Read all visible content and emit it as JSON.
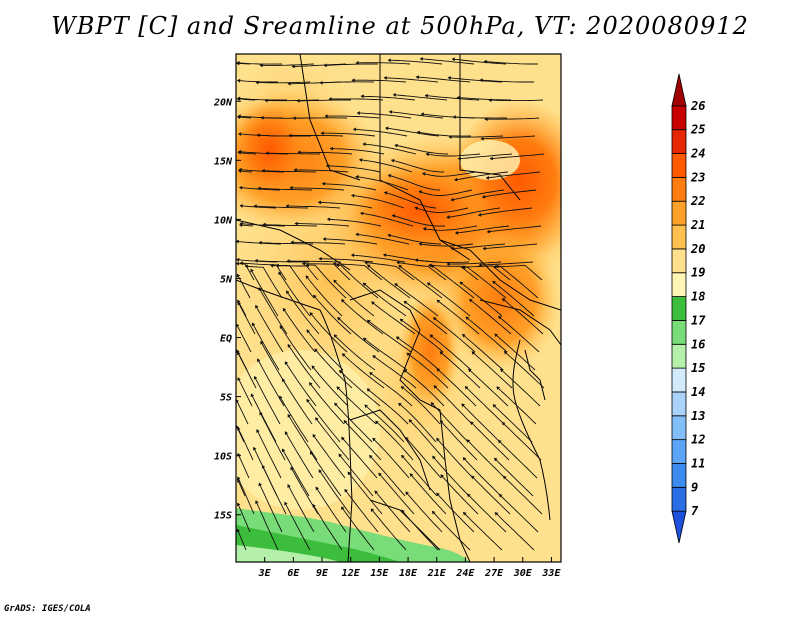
{
  "title": "WBPT [C] and Sreamline at 500hPa, VT: 2020080912",
  "credit": "GrADS: IGES/COLA",
  "map": {
    "lon_labels": [
      "3E",
      "6E",
      "9E",
      "12E",
      "15E",
      "18E",
      "21E",
      "24E",
      "27E",
      "30E",
      "33E"
    ],
    "lat_labels": [
      "20N",
      "15N",
      "10N",
      "5N",
      "EQ",
      "5S",
      "10S",
      "15S"
    ],
    "lon_range": [
      0,
      34
    ],
    "lat_range": [
      -19,
      24
    ],
    "field": "Wet-bulb potential temperature",
    "level": "500hPa"
  },
  "colorbar": {
    "labels": [
      "7",
      "9",
      "11",
      "12",
      "13",
      "14",
      "15",
      "16",
      "17",
      "18",
      "19",
      "20",
      "21",
      "22",
      "23",
      "24",
      "25",
      "26"
    ],
    "colors": [
      "#1e50dc",
      "#2a6ee6",
      "#3c8cf0",
      "#5aa5f5",
      "#82bef8",
      "#aad2fa",
      "#d2ebfc",
      "#b4f0aa",
      "#78dc78",
      "#3cbe3c",
      "#fff5b4",
      "#ffe08c",
      "#ffc050",
      "#ffa028",
      "#ff7d0f",
      "#ff5a00",
      "#e62800",
      "#c80000",
      "#a00000"
    ]
  },
  "legend_colors": {
    "ocean_frame": "#ffffff",
    "border": "#000000"
  }
}
